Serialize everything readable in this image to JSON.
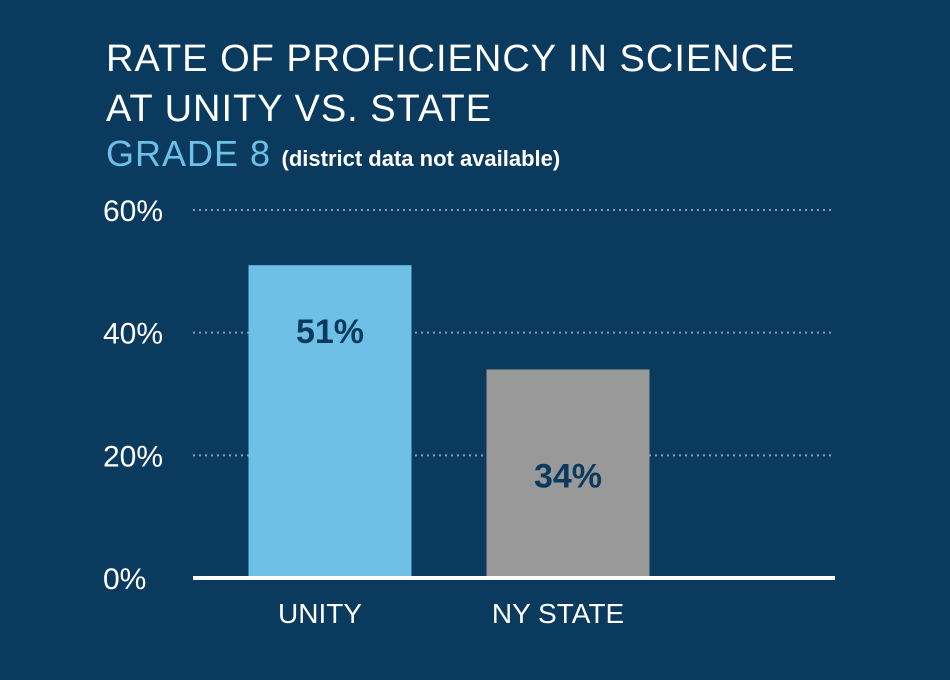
{
  "chart_data": {
    "type": "bar",
    "title": "RATE OF PROFICIENCY IN SCIENCE AT UNITY VS. STATE",
    "title_lines": [
      "RATE OF PROFICIENCY IN SCIENCE",
      "AT UNITY VS. STATE"
    ],
    "subtitle": "GRADE 8",
    "subtitle_note": "(district data not available)",
    "categories": [
      "UNITY",
      "NY STATE"
    ],
    "values": [
      51,
      34
    ],
    "value_labels": [
      "51%",
      "34%"
    ],
    "bar_colors": [
      "#6ec0e6",
      "#999999"
    ],
    "ylim": [
      0,
      60
    ],
    "yticks": [
      0,
      20,
      40,
      60
    ],
    "ytick_labels": [
      "0%",
      "20%",
      "40%",
      "60%"
    ],
    "grid": true,
    "xlabel": "",
    "ylabel": ""
  },
  "colors": {
    "background": "#0a3a5e",
    "accent": "#6ec0e6",
    "gridline": "#7fa3bf",
    "axis": "#ffffff"
  }
}
